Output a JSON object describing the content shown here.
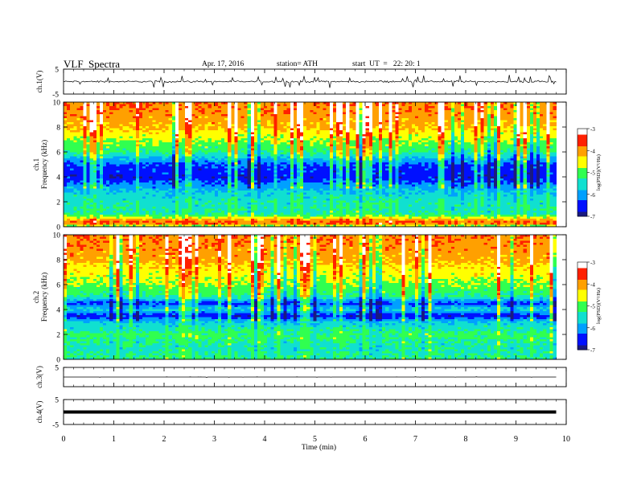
{
  "header": {
    "title": "VLF  Spectra",
    "date": "Apr. 17, 2016",
    "station": "station= ATH",
    "start_time": "start  UT  =   22: 20: 1"
  },
  "colors": {
    "background": "#ffffff",
    "axes": "#000000",
    "colormap": [
      "#1a1a80",
      "#0010ff",
      "#00a0ff",
      "#10e0d0",
      "#30ff50",
      "#ffff00",
      "#ffa000",
      "#ff2000",
      "#ffffff"
    ]
  },
  "chart_data": [
    {
      "type": "line",
      "id": "ch1-waveform",
      "ylabel": "ch.1(V)",
      "ylim": [
        -5,
        5
      ],
      "ytick_labels": [
        "-5",
        "5"
      ],
      "xlim": [
        0,
        10
      ],
      "baseline": 0,
      "amplitude_range": [
        -1.5,
        1.5
      ]
    },
    {
      "type": "heatmap",
      "id": "ch1-spectrogram",
      "ylabel": "ch.1\nFrequency  (kHz)",
      "ylabel_lines": [
        "ch.1",
        "Frequency  (kHz)"
      ],
      "ylim": [
        0,
        10
      ],
      "yticks": [
        0,
        2,
        4,
        6,
        8,
        10
      ],
      "ytick_labels": [
        "0",
        "2",
        "4",
        "6",
        "8",
        "10"
      ],
      "xlim": [
        0,
        9.8
      ],
      "colorbar": {
        "label": "log(PSD)(V²/Hz)",
        "range": [
          -7,
          -3
        ],
        "ticks": [
          -3,
          -4,
          -5,
          -6,
          -7
        ],
        "tick_labels": [
          "-3",
          "-4",
          "-5",
          "-6",
          "-7"
        ]
      },
      "frequency_profile_kHz": [
        {
          "f": 0.0,
          "level": -5.2
        },
        {
          "f": 0.3,
          "level": -3.5
        },
        {
          "f": 1.0,
          "level": -5.3
        },
        {
          "f": 2.0,
          "level": -5.4
        },
        {
          "f": 3.0,
          "level": -5.8
        },
        {
          "f": 4.0,
          "level": -6.6
        },
        {
          "f": 5.0,
          "level": -6.3
        },
        {
          "f": 6.0,
          "level": -5.2
        },
        {
          "f": 7.0,
          "level": -4.7
        },
        {
          "f": 8.0,
          "level": -4.2
        },
        {
          "f": 9.0,
          "level": -3.9
        },
        {
          "f": 10.0,
          "level": -3.8
        }
      ]
    },
    {
      "type": "heatmap",
      "id": "ch2-spectrogram",
      "ylabel": "ch.2\nFrequency  (kHz)",
      "ylabel_lines": [
        "ch.2",
        "Frequency  (kHz)"
      ],
      "ylim": [
        0,
        10
      ],
      "yticks": [
        0,
        2,
        4,
        6,
        8,
        10
      ],
      "ytick_labels": [
        "0",
        "2",
        "4",
        "6",
        "8",
        "10"
      ],
      "xlim": [
        0,
        9.8
      ],
      "colorbar": {
        "label": "log(PSD)(V²/Hz)",
        "range": [
          -7,
          -3
        ],
        "ticks": [
          -3,
          -4,
          -5,
          -6,
          -7
        ],
        "tick_labels": [
          "-3",
          "-4",
          "-5",
          "-6",
          "-7"
        ]
      },
      "frequency_profile_kHz": [
        {
          "f": 0.0,
          "level": -5.2
        },
        {
          "f": 1.0,
          "level": -5.4
        },
        {
          "f": 2.0,
          "level": -5.1
        },
        {
          "f": 3.0,
          "level": -5.7
        },
        {
          "f": 3.5,
          "level": -6.6
        },
        {
          "f": 4.0,
          "level": -5.6
        },
        {
          "f": 4.5,
          "level": -6.4
        },
        {
          "f": 5.0,
          "level": -5.3
        },
        {
          "f": 6.0,
          "level": -4.8
        },
        {
          "f": 7.0,
          "level": -4.5
        },
        {
          "f": 8.0,
          "level": -4.1
        },
        {
          "f": 9.0,
          "level": -3.9
        },
        {
          "f": 10.0,
          "level": -3.8
        }
      ]
    },
    {
      "type": "line",
      "id": "ch3-waveform",
      "ylabel": "ch.3(V)",
      "ylim": [
        -5,
        5
      ],
      "ytick_labels": [
        "5"
      ],
      "xlim": [
        0,
        10
      ],
      "baseline": 0,
      "amplitude_range": [
        -0.2,
        0.2
      ]
    },
    {
      "type": "line",
      "id": "ch4-waveform",
      "ylabel": "ch.4(V)",
      "ylim": [
        -5,
        5
      ],
      "ytick_labels": [
        "5",
        "-5"
      ],
      "xlim": [
        0,
        10
      ],
      "baseline": 0,
      "amplitude_range": [
        -0.3,
        0.3
      ],
      "xlabel": "Time  (min)",
      "xticks": [
        0,
        1,
        2,
        3,
        4,
        5,
        6,
        7,
        8,
        9,
        10
      ],
      "xtick_labels": [
        "0",
        "1",
        "2",
        "3",
        "4",
        "5",
        "6",
        "7",
        "8",
        "9",
        "10"
      ]
    }
  ]
}
